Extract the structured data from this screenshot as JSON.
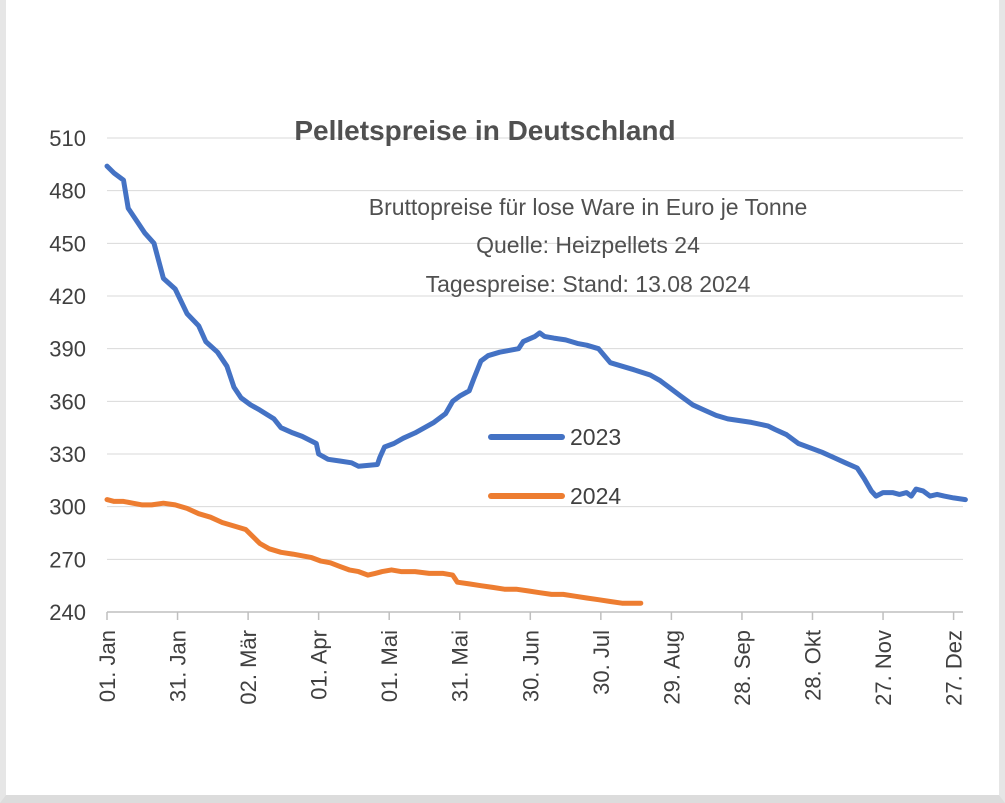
{
  "chart_data": {
    "type": "line",
    "title": "Pelletspreise in Deutschland",
    "subtitle_lines": [
      "Bruttopreise für lose Ware in Euro je Tonne",
      "Quelle: Heizpellets 24",
      "Tagespreise: Stand: 13.08 2024"
    ],
    "xlabel": "",
    "ylabel": "",
    "ylim": [
      240,
      510
    ],
    "yticks": [
      240,
      270,
      300,
      330,
      360,
      390,
      420,
      450,
      480,
      510
    ],
    "xlim_day_of_year": [
      1,
      365
    ],
    "xtick_labels": [
      "01. Jan",
      "31. Jan",
      "02. Mär",
      "01. Apr",
      "01. Mai",
      "31. Mai",
      "30. Jun",
      "30. Jul",
      "29. Aug",
      "28. Sep",
      "28. Okt",
      "27. Nov",
      "27. Dez"
    ],
    "xtick_day_of_year": [
      1,
      31,
      61,
      91,
      121,
      151,
      181,
      211,
      241,
      271,
      301,
      331,
      361
    ],
    "grid": true,
    "legend_position": "center-right",
    "series": [
      {
        "name": "2023",
        "color": "#4472c4",
        "points": [
          [
            1,
            494
          ],
          [
            4,
            490
          ],
          [
            8,
            486
          ],
          [
            10,
            470
          ],
          [
            14,
            462
          ],
          [
            17,
            456
          ],
          [
            21,
            450
          ],
          [
            23,
            440
          ],
          [
            25,
            430
          ],
          [
            30,
            424
          ],
          [
            35,
            410
          ],
          [
            40,
            403
          ],
          [
            43,
            394
          ],
          [
            48,
            388
          ],
          [
            52,
            380
          ],
          [
            55,
            368
          ],
          [
            58,
            362
          ],
          [
            62,
            358
          ],
          [
            66,
            355
          ],
          [
            72,
            350
          ],
          [
            75,
            345
          ],
          [
            80,
            342
          ],
          [
            84,
            340
          ],
          [
            90,
            336
          ],
          [
            91,
            330
          ],
          [
            95,
            327
          ],
          [
            100,
            326
          ],
          [
            105,
            325
          ],
          [
            108,
            323
          ],
          [
            116,
            324
          ],
          [
            117,
            328
          ],
          [
            119,
            334
          ],
          [
            123,
            336
          ],
          [
            127,
            339
          ],
          [
            132,
            342
          ],
          [
            136,
            345
          ],
          [
            140,
            348
          ],
          [
            145,
            353
          ],
          [
            148,
            360
          ],
          [
            151,
            363
          ],
          [
            155,
            366
          ],
          [
            157,
            373
          ],
          [
            160,
            383
          ],
          [
            163,
            386
          ],
          [
            168,
            388
          ],
          [
            172,
            389
          ],
          [
            176,
            390
          ],
          [
            178,
            394
          ],
          [
            183,
            397
          ],
          [
            185,
            399
          ],
          [
            187,
            397
          ],
          [
            191,
            396
          ],
          [
            196,
            395
          ],
          [
            201,
            393
          ],
          [
            205,
            392
          ],
          [
            210,
            390
          ],
          [
            215,
            382
          ],
          [
            220,
            380
          ],
          [
            225,
            378
          ],
          [
            232,
            375
          ],
          [
            236,
            372
          ],
          [
            240,
            368
          ],
          [
            245,
            363
          ],
          [
            250,
            358
          ],
          [
            255,
            355
          ],
          [
            260,
            352
          ],
          [
            265,
            350
          ],
          [
            270,
            349
          ],
          [
            275,
            348
          ],
          [
            282,
            346
          ],
          [
            285,
            344
          ],
          [
            290,
            341
          ],
          [
            295,
            336
          ],
          [
            301,
            333
          ],
          [
            305,
            331
          ],
          [
            310,
            328
          ],
          [
            315,
            325
          ],
          [
            320,
            322
          ],
          [
            323,
            316
          ],
          [
            326,
            309
          ],
          [
            328,
            306
          ],
          [
            331,
            308
          ],
          [
            335,
            308
          ],
          [
            338,
            307
          ],
          [
            341,
            308
          ],
          [
            343,
            306
          ],
          [
            345,
            310
          ],
          [
            348,
            309
          ],
          [
            351,
            306
          ],
          [
            354,
            307
          ],
          [
            357,
            306
          ],
          [
            361,
            305
          ],
          [
            366,
            304
          ]
        ]
      },
      {
        "name": "2024",
        "color": "#ed7d31",
        "points": [
          [
            1,
            304
          ],
          [
            4,
            303
          ],
          [
            8,
            303
          ],
          [
            12,
            302
          ],
          [
            16,
            301
          ],
          [
            20,
            301
          ],
          [
            25,
            302
          ],
          [
            30,
            301
          ],
          [
            35,
            299
          ],
          [
            40,
            296
          ],
          [
            45,
            294
          ],
          [
            50,
            291
          ],
          [
            55,
            289
          ],
          [
            60,
            287
          ],
          [
            63,
            283
          ],
          [
            66,
            279
          ],
          [
            70,
            276
          ],
          [
            75,
            274
          ],
          [
            80,
            273
          ],
          [
            84,
            272
          ],
          [
            88,
            271
          ],
          [
            92,
            269
          ],
          [
            96,
            268
          ],
          [
            100,
            266
          ],
          [
            104,
            264
          ],
          [
            108,
            263
          ],
          [
            112,
            261
          ],
          [
            115,
            262
          ],
          [
            118,
            263
          ],
          [
            122,
            264
          ],
          [
            126,
            263
          ],
          [
            132,
            263
          ],
          [
            138,
            262
          ],
          [
            144,
            262
          ],
          [
            148,
            261
          ],
          [
            150,
            257
          ],
          [
            155,
            256
          ],
          [
            160,
            255
          ],
          [
            165,
            254
          ],
          [
            170,
            253
          ],
          [
            175,
            253
          ],
          [
            180,
            252
          ],
          [
            185,
            251
          ],
          [
            190,
            250
          ],
          [
            195,
            250
          ],
          [
            200,
            249
          ],
          [
            205,
            248
          ],
          [
            210,
            247
          ],
          [
            215,
            246
          ],
          [
            220,
            245
          ],
          [
            225,
            245
          ],
          [
            228,
            245
          ]
        ]
      }
    ]
  }
}
